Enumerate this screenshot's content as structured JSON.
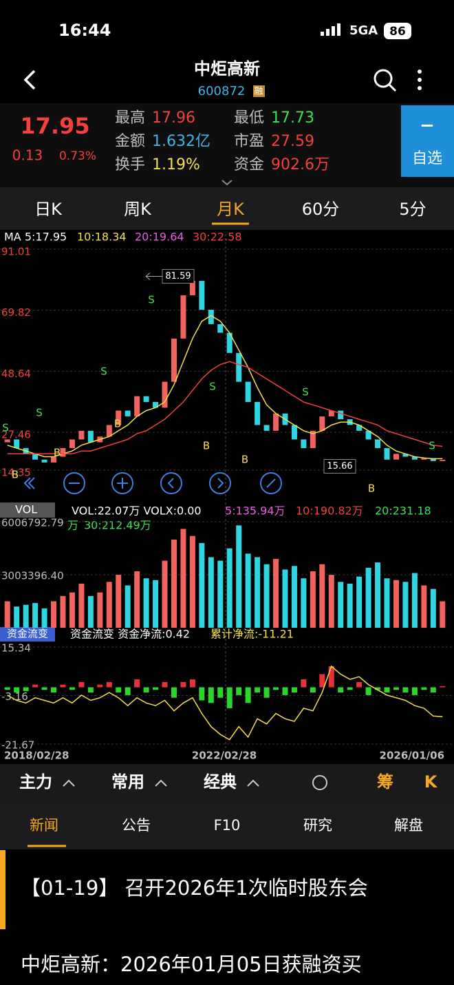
{
  "status": {
    "time": "16:44",
    "network": "5GA",
    "battery": "86"
  },
  "header": {
    "title": "中炬高新",
    "code": "600872",
    "badge": "融"
  },
  "quote": {
    "price": "17.95",
    "change": "0.13",
    "change_pct": "0.73%",
    "fields": [
      {
        "label": "最高",
        "value": "17.96"
      },
      {
        "label": "金额",
        "value": "1.632亿"
      },
      {
        "label": "换手",
        "value": "1.19%"
      },
      {
        "label": "最低",
        "value": "17.73"
      },
      {
        "label": "市盈",
        "value": "27.59"
      },
      {
        "label": "资金",
        "value": "902.6万"
      }
    ],
    "watch_icon": "−",
    "watch": "自选"
  },
  "tabs": [
    "日K",
    "周K",
    "月K",
    "60分",
    "5分"
  ],
  "kline": {
    "ma_legend": [
      "MA 5:17.95",
      "10:18.34",
      "20:19.64",
      "30:22.58"
    ],
    "ylim": [
      14.35,
      91.01
    ],
    "yticks": [
      14.35,
      27.46,
      48.64,
      69.82,
      91.01
    ],
    "open": [
      24,
      25,
      22,
      20,
      18,
      17,
      19,
      22,
      25,
      28,
      24,
      26,
      30,
      35,
      33,
      40,
      38,
      36,
      45,
      60,
      75,
      80,
      70,
      65,
      62,
      55,
      45,
      38,
      30,
      28,
      34,
      30,
      25,
      22,
      28,
      33,
      35,
      32,
      30,
      28,
      25,
      22,
      18,
      20,
      19,
      18,
      18.5,
      17.5
    ],
    "close": [
      25,
      22,
      20,
      18,
      17,
      19,
      22,
      25,
      28,
      24,
      26,
      30,
      35,
      33,
      40,
      38,
      36,
      45,
      60,
      75,
      80,
      70,
      65,
      62,
      55,
      45,
      38,
      30,
      28,
      34,
      30,
      25,
      22,
      28,
      33,
      35,
      32,
      30,
      28,
      25,
      22,
      18,
      20,
      19,
      18,
      18.5,
      17.5,
      17.95
    ],
    "ma10": [
      23,
      22,
      21,
      20,
      19,
      19,
      20,
      21,
      23,
      24,
      25,
      26,
      28,
      30,
      33,
      35,
      36,
      38,
      44,
      52,
      60,
      66,
      68,
      66,
      62,
      56,
      50,
      43,
      37,
      34,
      32,
      30,
      28,
      27,
      28,
      30,
      31,
      31,
      30,
      28,
      26,
      23,
      21,
      20,
      19,
      18.6,
      18.3,
      18.34
    ],
    "ma30": [
      20,
      20,
      20,
      20,
      20,
      20,
      20,
      20,
      21,
      21,
      22,
      23,
      24,
      25,
      27,
      28,
      30,
      32,
      35,
      38,
      42,
      46,
      49,
      51,
      52,
      51,
      50,
      48,
      46,
      44,
      42,
      40,
      38,
      37,
      36,
      35,
      34,
      33,
      32,
      31,
      30,
      28,
      27,
      26,
      25,
      24,
      23,
      22.58
    ],
    "high_label": 81.59,
    "low_label": 15.66,
    "signals": [
      "S",
      "B",
      "S",
      "B",
      "S",
      "B",
      "S",
      "B",
      "S",
      "B",
      "S",
      "B",
      "S"
    ]
  },
  "volume": {
    "title": "VOL",
    "legend": [
      "VOL:22.07万 VOLX:0.00",
      "5:135.94万",
      "10:190.82万",
      "20:231.18",
      "万",
      "30:212.49万"
    ],
    "ylim": [
      0,
      6006792.79
    ],
    "yticks": [
      {
        "value": 3003396.4,
        "label": "3003396.40"
      },
      6006792.79
    ],
    "values": [
      1500000,
      1200000,
      1300000,
      1400000,
      1100000,
      1500000,
      1800000,
      2000000,
      2500000,
      1800000,
      2000000,
      2600000,
      3000000,
      2400000,
      3200000,
      2800000,
      2700000,
      3800000,
      5000000,
      5600000,
      5200000,
      4800000,
      4000000,
      3800000,
      4500000,
      5800000,
      4200000,
      4000000,
      3600000,
      3900000,
      3300000,
      3500000,
      2800000,
      3200000,
      3600000,
      3000000,
      2600000,
      2500000,
      2900000,
      3400000,
      3700000,
      2800000,
      2700000,
      2600000,
      3100000,
      2400000,
      2200000,
      1500000
    ]
  },
  "flow": {
    "title": "资金流变",
    "legend": [
      "资金流变 资金净流:0.42",
      "累计净流:-11.21"
    ],
    "ylim": [
      -21.67,
      15.34
    ],
    "yticks": [
      -21.67,
      -3.16,
      15.34
    ],
    "values": [
      -1,
      -2,
      -1.5,
      1,
      -1,
      -2,
      1,
      -1,
      2,
      -2,
      1,
      2,
      -2,
      -3,
      3,
      -2,
      -1,
      2,
      -4,
      2,
      3,
      -5,
      -6,
      -4,
      -8,
      -3,
      -6,
      -2,
      -4,
      -1,
      -3,
      -2,
      3,
      -2,
      5,
      8,
      -2,
      -1,
      2,
      -3,
      -1,
      -2,
      -1,
      -2,
      -3,
      -1,
      -2,
      0.42
    ],
    "cumulative": [
      -3,
      -5,
      -6,
      -4,
      -5,
      -6,
      -4,
      -6,
      -3,
      -5,
      -4,
      -2,
      -4,
      -7,
      -4,
      -6,
      -7,
      -5,
      -9,
      -6,
      -4,
      -10,
      -15,
      -18,
      -20,
      -15,
      -19,
      -12,
      -14,
      -10,
      -12,
      -13,
      -8,
      -9,
      -2,
      8,
      5,
      3,
      4,
      1,
      -1,
      -3,
      -4,
      -5,
      -7,
      -8,
      -11,
      -11.21
    ]
  },
  "dates": [
    "2018/02/28",
    "2022/02/28",
    "2026/01/06"
  ],
  "toolbar": [
    "主力",
    "常用",
    "经典",
    "筹",
    "K"
  ],
  "news_tabs": [
    "新闻",
    "公告",
    "F10",
    "研究",
    "解盘"
  ],
  "news": [
    "【01-19】 召开2026年1次临时股东会",
    "中炬高新：2026年01月05日获融资买"
  ]
}
